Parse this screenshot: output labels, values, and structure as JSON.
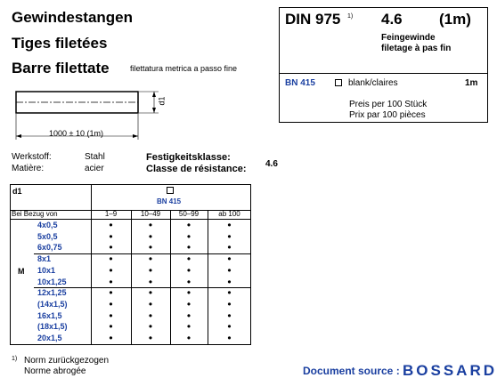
{
  "header": {
    "titles": [
      "Gewindestangen",
      "Tiges filetées",
      "Barre filettate"
    ],
    "subtitle": "filettatura metrica a passo fine"
  },
  "drawing": {
    "diameter": "d1",
    "length": "1000 ± 10  (1m)"
  },
  "box": {
    "standard": "DIN 975",
    "footnote_mark": "1)",
    "grade": "4.6",
    "length": "(1m)",
    "description": [
      "Feingewinde",
      "filetage à pas fin"
    ],
    "code": "BN 415",
    "finish": "blank/claires",
    "unit": "1m",
    "price": [
      "Preis per 100 Stück",
      "Prix par 100 pièces"
    ]
  },
  "material": {
    "rows": [
      [
        "Werkstoff:",
        "Stahl"
      ],
      [
        "Matière:",
        "acier"
      ]
    ],
    "class_labels": [
      "Festigkeitsklasse:",
      "Classe de résistance:"
    ],
    "class_value": "4.6"
  },
  "table": {
    "d1": "d1",
    "code": "BN 415",
    "order_label": "Bei Bezug von",
    "quantities": [
      "1–9",
      "10–49",
      "50–99",
      "ab 100"
    ],
    "thread": "M",
    "groups": [
      [
        "4x0,5",
        "5x0,5",
        "6x0,75"
      ],
      [
        "8x1",
        "10x1",
        "10x1,25"
      ],
      [
        "12x1,25",
        "(14x1,5)",
        "16x1,5",
        "(18x1,5)",
        "20x1,5"
      ]
    ],
    "dot": "•"
  },
  "footnote": {
    "mark": "1)",
    "lines": [
      "Norm zurückgezogen",
      "Norme abrogée"
    ]
  },
  "source": {
    "label": "Document source :",
    "brand": "BOSSARD"
  }
}
